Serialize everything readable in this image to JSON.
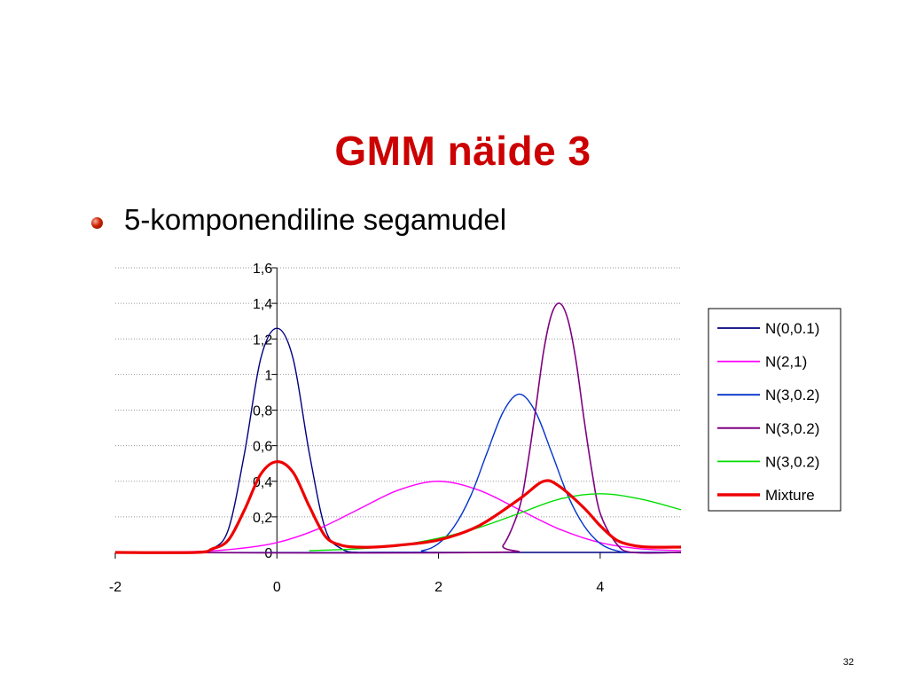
{
  "slide": {
    "title": "GMM näide 3",
    "bullet": "5-komponendiline segamudel",
    "page_number": "32"
  },
  "colors": {
    "title": "#cc0000",
    "series": [
      "#000080",
      "#ff00ff",
      "#0033cc",
      "#800080",
      "#00dd00",
      "#ee0000"
    ]
  },
  "chart_data": {
    "type": "line",
    "title": "",
    "xlabel": "",
    "ylabel": "",
    "xlim": [
      -2,
      5
    ],
    "ylim": [
      0,
      1.6
    ],
    "x_ticks": [
      "-2",
      "0",
      "2",
      "4"
    ],
    "x_tick_values": [
      -2,
      0,
      2,
      4
    ],
    "y_ticks": [
      "0",
      "0,2",
      "0,4",
      "0,6",
      "0,8",
      "1",
      "1,2",
      "1,4",
      "1,6"
    ],
    "y_tick_values": [
      0,
      0.2,
      0.4,
      0.6,
      0.8,
      1.0,
      1.2,
      1.4,
      1.6
    ],
    "grid": "horizontal dotted",
    "legend_position": "right",
    "series": [
      {
        "name": "N(0,0.1)",
        "x": [
          -2,
          -1,
          -0.8,
          -0.6,
          -0.4,
          -0.2,
          0,
          0.2,
          0.4,
          0.6,
          0.8,
          1,
          1.2,
          5
        ],
        "y": [
          0,
          0,
          0.02,
          0.13,
          0.56,
          1.09,
          1.26,
          1.09,
          0.56,
          0.13,
          0.02,
          0,
          0,
          0
        ]
      },
      {
        "name": "N(2,1)",
        "x": [
          -2,
          -1,
          -0.5,
          0,
          0.5,
          1,
          1.5,
          2,
          2.5,
          3,
          3.5,
          4,
          4.5,
          5
        ],
        "y": [
          0,
          0.005,
          0.02,
          0.055,
          0.13,
          0.24,
          0.35,
          0.4,
          0.35,
          0.24,
          0.13,
          0.055,
          0.02,
          0.01
        ]
      },
      {
        "name": "N(3,0.2)",
        "x": [
          -2,
          1.5,
          1.8,
          2.0,
          2.2,
          2.4,
          2.6,
          2.8,
          3.0,
          3.2,
          3.4,
          3.6,
          3.8,
          4.0,
          4.2,
          4.4,
          5
        ],
        "y": [
          0,
          0,
          0.01,
          0.05,
          0.15,
          0.32,
          0.56,
          0.79,
          0.89,
          0.79,
          0.56,
          0.32,
          0.15,
          0.05,
          0.01,
          0,
          0
        ]
      },
      {
        "name": "N(3,0.2)",
        "x": [
          -2,
          2.6,
          2.8,
          3.0,
          3.1,
          3.2,
          3.3,
          3.4,
          3.5,
          3.6,
          3.7,
          3.8,
          3.9,
          4.0,
          4.2,
          4.4,
          5
        ],
        "y": [
          0,
          0,
          0.04,
          0.25,
          0.49,
          0.8,
          1.13,
          1.34,
          1.4,
          1.31,
          1.08,
          0.75,
          0.45,
          0.22,
          0.05,
          0,
          0
        ]
      },
      {
        "name": "N(3,0.2)",
        "x": [
          0.4,
          1,
          1.5,
          2,
          2.5,
          3,
          3.5,
          4,
          4.5,
          5
        ],
        "y": [
          0.01,
          0.02,
          0.04,
          0.08,
          0.14,
          0.22,
          0.3,
          0.33,
          0.3,
          0.24
        ]
      },
      {
        "name": "Mixture",
        "x": [
          -2,
          -1,
          -0.8,
          -0.6,
          -0.4,
          -0.2,
          0,
          0.2,
          0.4,
          0.6,
          0.8,
          1.0,
          1.2,
          1.5,
          2.0,
          2.5,
          3.0,
          3.3,
          3.5,
          3.8,
          4.0,
          4.2,
          4.4,
          4.6,
          5
        ],
        "y": [
          0,
          0,
          0.02,
          0.07,
          0.24,
          0.44,
          0.51,
          0.45,
          0.26,
          0.09,
          0.04,
          0.03,
          0.03,
          0.04,
          0.07,
          0.15,
          0.3,
          0.4,
          0.37,
          0.25,
          0.15,
          0.07,
          0.04,
          0.03,
          0.03
        ]
      }
    ]
  }
}
